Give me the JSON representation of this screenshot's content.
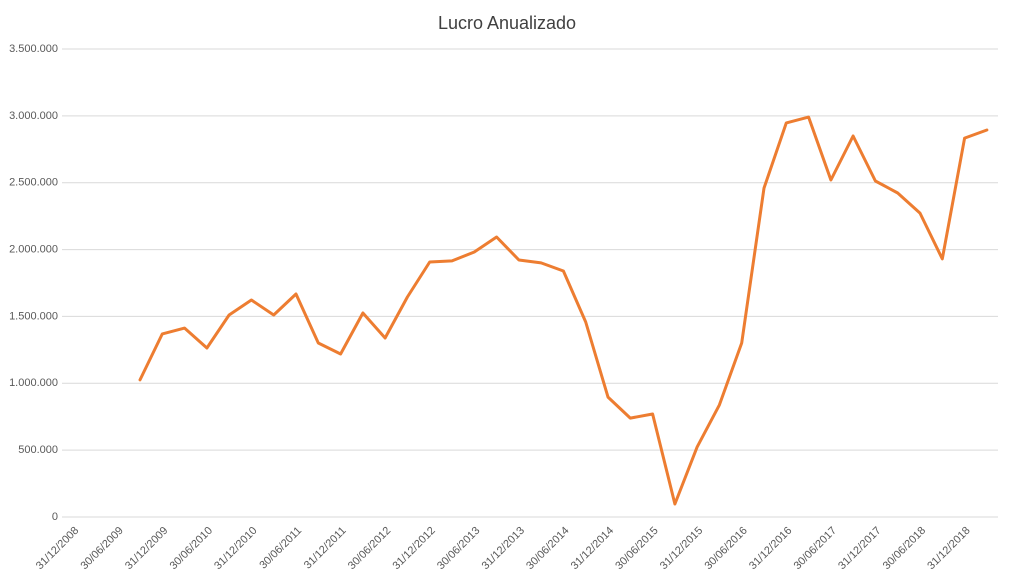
{
  "chart_data": {
    "type": "line",
    "title": "Lucro Anualizado",
    "categories": [
      "31/12/2008",
      null,
      "30/06/2009",
      null,
      "31/12/2009",
      null,
      "30/06/2010",
      null,
      "31/12/2010",
      null,
      "30/06/2011",
      null,
      "31/12/2011",
      null,
      "30/06/2012",
      null,
      "31/12/2012",
      null,
      "30/06/2013",
      null,
      "31/12/2013",
      null,
      "30/06/2014",
      null,
      "31/12/2014",
      null,
      "30/06/2015",
      null,
      "31/12/2015",
      null,
      "30/06/2016",
      null,
      "31/12/2016",
      null,
      "30/06/2017",
      null,
      "31/12/2017",
      null,
      "30/06/2018",
      null,
      "31/12/2018",
      null
    ],
    "values": [
      null,
      null,
      null,
      1025000,
      1369000,
      1413000,
      1264000,
      1511000,
      1623000,
      1511000,
      1668000,
      1301000,
      1219000,
      1526000,
      1339000,
      1645000,
      1907000,
      1915000,
      1982000,
      2094000,
      1922000,
      1900000,
      1840000,
      1458000,
      897000,
      740000,
      770000,
      97000,
      523000,
      838000,
      1301000,
      2460000,
      2947000,
      2991000,
      2520000,
      2849000,
      2513000,
      2423000,
      2273000,
      1930000,
      2834000,
      2894000
    ],
    "color": "#ed7d31",
    "ylim": [
      0,
      3500000
    ],
    "yticks": [
      0,
      {
        "value": 500000,
        "label": "500.000"
      },
      {
        "value": 1000000,
        "label": "1.000.000"
      },
      {
        "value": 1500000,
        "label": "1.500.000"
      },
      {
        "value": 2000000,
        "label": "2.000.000"
      },
      {
        "value": 2500000,
        "label": "2.500.000"
      },
      {
        "value": 3000000,
        "label": "3.000.000"
      },
      {
        "value": 3500000,
        "label": "3.500.000"
      }
    ],
    "grid": true
  }
}
